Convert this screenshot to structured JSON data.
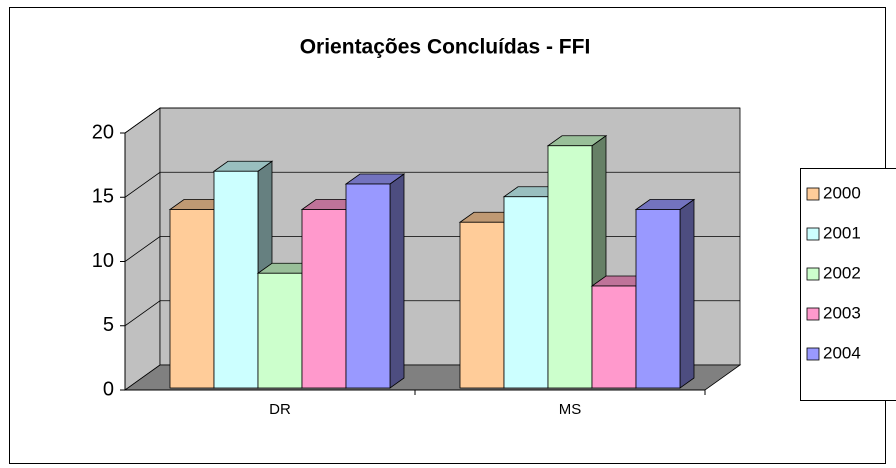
{
  "chart_data": {
    "type": "bar3d",
    "title": "Orientações Concluídas - FFI",
    "categories": [
      "DR",
      "MS"
    ],
    "series": [
      {
        "name": "2000",
        "color": "#ffcc99",
        "values": [
          14,
          13
        ]
      },
      {
        "name": "2001",
        "color": "#ccffff",
        "values": [
          17,
          15
        ]
      },
      {
        "name": "2002",
        "color": "#ccffcc",
        "values": [
          9,
          19
        ]
      },
      {
        "name": "2003",
        "color": "#ff99cc",
        "values": [
          14,
          8
        ]
      },
      {
        "name": "2004",
        "color": "#9999ff",
        "values": [
          16,
          14
        ]
      }
    ],
    "ylim": [
      0,
      20
    ],
    "yticks": [
      0,
      5,
      10,
      15,
      20
    ],
    "grid": true,
    "legend": "right"
  }
}
